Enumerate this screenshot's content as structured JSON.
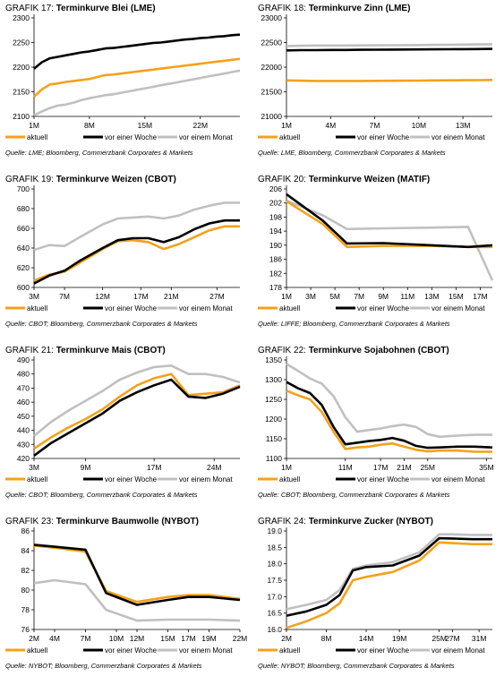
{
  "colors": {
    "aktuell": "#f4a11c",
    "woche": "#000000",
    "monat": "#c0c0c0"
  },
  "legend": [
    "aktuell",
    "vor einer Woche",
    "vor einem Monat"
  ],
  "chart_data": [
    {
      "type": "line",
      "grafik": "GRAFIK 17:",
      "title": "Terminkurve Blei (LME)",
      "source": "Quelle: LME; Bloomberg, Commerzbank Corporates & Markets",
      "ylim": [
        2100,
        2300
      ],
      "yticks": [
        2100,
        2150,
        2200,
        2250,
        2300
      ],
      "xlim": [
        1,
        27
      ],
      "xticks": [
        {
          "x": 1,
          "label": "1M"
        },
        {
          "x": 8,
          "label": "8M"
        },
        {
          "x": 15,
          "label": "15M"
        },
        {
          "x": 22,
          "label": "22M"
        }
      ],
      "x": [
        1,
        2,
        3,
        4,
        5,
        6,
        7,
        8,
        9,
        10,
        11,
        12,
        13,
        14,
        15,
        16,
        17,
        18,
        19,
        20,
        21,
        22,
        23,
        24,
        25,
        26,
        27
      ],
      "series": [
        {
          "name": "aktuell",
          "values": [
            2140,
            2155,
            2165,
            2167,
            2170,
            2172,
            2174,
            2176,
            2180,
            2184,
            2185,
            2187,
            2189,
            2191,
            2193,
            2195,
            2197,
            2199,
            2201,
            2203,
            2205,
            2207,
            2209,
            2211,
            2213,
            2215,
            2217
          ]
        },
        {
          "name": "vor einer Woche",
          "values": [
            2197,
            2210,
            2218,
            2221,
            2224,
            2227,
            2230,
            2232,
            2235,
            2238,
            2239,
            2241,
            2243,
            2245,
            2247,
            2249,
            2250,
            2252,
            2254,
            2256,
            2257,
            2259,
            2260,
            2262,
            2263,
            2265,
            2266
          ]
        },
        {
          "name": "vor einem Monat",
          "values": [
            2102,
            2110,
            2117,
            2122,
            2124,
            2128,
            2133,
            2137,
            2140,
            2143,
            2145,
            2148,
            2151,
            2154,
            2157,
            2160,
            2163,
            2166,
            2169,
            2172,
            2175,
            2178,
            2181,
            2184,
            2187,
            2190,
            2193
          ]
        }
      ]
    },
    {
      "type": "line",
      "grafik": "GRAFIK 18:",
      "title": "Terminkurve Zinn (LME)",
      "source": "Quelle: LME, Bloomberg, Commerzbank Corporates & Markets",
      "ylim": [
        21000,
        23000
      ],
      "yticks": [
        21000,
        21500,
        22000,
        22500,
        23000
      ],
      "xlim": [
        1,
        15
      ],
      "xticks": [
        {
          "x": 1,
          "label": "1M"
        },
        {
          "x": 4,
          "label": "4M"
        },
        {
          "x": 7,
          "label": "7M"
        },
        {
          "x": 10,
          "label": "10M"
        },
        {
          "x": 13,
          "label": "13M"
        }
      ],
      "x": [
        1,
        2,
        3,
        4,
        5,
        6,
        7,
        8,
        9,
        10,
        11,
        12,
        13,
        14,
        15
      ],
      "series": [
        {
          "name": "aktuell",
          "values": [
            21730,
            21725,
            21720,
            21720,
            21720,
            21720,
            21722,
            21724,
            21726,
            21728,
            21730,
            21732,
            21734,
            21737,
            21740
          ]
        },
        {
          "name": "vor einer Woche",
          "values": [
            22340,
            22345,
            22345,
            22350,
            22350,
            22352,
            22354,
            22356,
            22358,
            22360,
            22362,
            22364,
            22366,
            22368,
            22370
          ]
        },
        {
          "name": "vor einem Monat",
          "values": [
            22430,
            22435,
            22440,
            22440,
            22440,
            22442,
            22444,
            22446,
            22448,
            22450,
            22452,
            22455,
            22458,
            22461,
            22465
          ]
        }
      ]
    },
    {
      "type": "line",
      "grafik": "GRAFIK 19:",
      "title": "Terminkurve Weizen (CBOT)",
      "source": "Quelle: CBOT; Bloomberg, Commerzbank Corporates & Markets",
      "ylim": [
        600,
        700
      ],
      "yticks": [
        600,
        620,
        640,
        660,
        680,
        700
      ],
      "xlim": [
        3,
        30
      ],
      "xticks": [
        {
          "x": 3,
          "label": "3M"
        },
        {
          "x": 7,
          "label": "7M"
        },
        {
          "x": 12,
          "label": "12M"
        },
        {
          "x": 17,
          "label": "17M"
        },
        {
          "x": 21,
          "label": "21M"
        },
        {
          "x": 27,
          "label": "27M"
        }
      ],
      "x": [
        3,
        5,
        7,
        9,
        12,
        14,
        16,
        18,
        20,
        22,
        24,
        26,
        28,
        30
      ],
      "series": [
        {
          "name": "aktuell",
          "values": [
            607,
            613,
            616,
            625,
            639,
            647,
            648,
            646,
            639,
            644,
            651,
            658,
            662,
            662
          ]
        },
        {
          "name": "vor einer Woche",
          "values": [
            604,
            612,
            617,
            627,
            640,
            648,
            650,
            650,
            646,
            651,
            659,
            665,
            668,
            668
          ]
        },
        {
          "name": "vor einem Monat",
          "values": [
            638,
            643,
            642,
            651,
            664,
            670,
            671,
            672,
            670,
            673,
            679,
            683,
            686,
            686
          ]
        }
      ]
    },
    {
      "type": "line",
      "grafik": "GRAFIK 20:",
      "title": "Terminkurve Weizen (MATIF)",
      "source": "Quelle: LIFFE; Bloomberg, Commerzbank Corporates & Markets",
      "ylim": [
        178,
        206
      ],
      "yticks": [
        178,
        182,
        186,
        190,
        194,
        198,
        202,
        206
      ],
      "xlim": [
        1,
        18
      ],
      "xticks": [
        {
          "x": 1,
          "label": "1M"
        },
        {
          "x": 3,
          "label": "3M"
        },
        {
          "x": 5,
          "label": "5M"
        },
        {
          "x": 7,
          "label": "7M"
        },
        {
          "x": 9,
          "label": "9M"
        },
        {
          "x": 11,
          "label": "11M"
        },
        {
          "x": 13,
          "label": "13M"
        },
        {
          "x": 15,
          "label": "15M"
        },
        {
          "x": 17,
          "label": "17M"
        }
      ],
      "x": [
        1,
        4,
        6,
        9,
        13,
        16,
        18
      ],
      "series": [
        {
          "name": "aktuell",
          "values": [
            202.5,
            196,
            189.5,
            189.8,
            189.8,
            189.5,
            189.5
          ]
        },
        {
          "name": "vor einer Woche",
          "values": [
            204.5,
            197,
            190.5,
            190.6,
            190,
            189.5,
            190
          ]
        },
        {
          "name": "vor einem Monat",
          "values": [
            202.7,
            198.5,
            194.6,
            194.8,
            195,
            195.2,
            180
          ]
        }
      ]
    },
    {
      "type": "line",
      "grafik": "GRAFIK 21:",
      "title": "Terminkurve Mais (CBOT)",
      "source": "Quelle: CBOT; Bloomberg, Commerzbank Corporates & Markets",
      "ylim": [
        420,
        490
      ],
      "yticks": [
        420,
        430,
        440,
        450,
        460,
        470,
        480,
        490
      ],
      "xlim": [
        3,
        27
      ],
      "xticks": [
        {
          "x": 3,
          "label": "3M"
        },
        {
          "x": 9,
          "label": "9M"
        },
        {
          "x": 17,
          "label": "17M"
        },
        {
          "x": 24,
          "label": "24M"
        }
      ],
      "x": [
        3,
        5,
        7,
        9,
        11,
        13,
        15,
        17,
        19,
        21,
        23,
        25,
        27
      ],
      "series": [
        {
          "name": "aktuell",
          "values": [
            427,
            435,
            442,
            448,
            455,
            464,
            472,
            477,
            480,
            465,
            466,
            467,
            472
          ]
        },
        {
          "name": "vor einer Woche",
          "values": [
            422,
            431,
            438,
            445,
            452,
            461,
            467,
            472,
            476,
            464,
            463,
            466,
            471
          ]
        },
        {
          "name": "vor einem Monat",
          "values": [
            436,
            446,
            454,
            461,
            468,
            476,
            481,
            485,
            486,
            480,
            480,
            478,
            474
          ]
        }
      ]
    },
    {
      "type": "line",
      "grafik": "GRAFIK 22:",
      "title": "Terminkurve Sojabohnen (CBOT)",
      "source": "Quelle: CBOT; Bloomberg, Commerzbank Corporates & Markets",
      "ylim": [
        1100,
        1350
      ],
      "yticks": [
        1100,
        1150,
        1200,
        1250,
        1300,
        1350
      ],
      "xlim": [
        1,
        36
      ],
      "xticks": [
        {
          "x": 1,
          "label": "1M"
        },
        {
          "x": 11,
          "label": "11M"
        },
        {
          "x": 17,
          "label": "17M"
        },
        {
          "x": 21,
          "label": "21M"
        },
        {
          "x": 25,
          "label": "25M"
        },
        {
          "x": 35,
          "label": "35M"
        }
      ],
      "x": [
        1,
        3,
        5,
        7,
        9,
        11,
        13,
        15,
        17,
        19,
        21,
        23,
        25,
        27,
        30,
        33,
        36
      ],
      "series": [
        {
          "name": "aktuell",
          "values": [
            1272,
            1260,
            1250,
            1218,
            1168,
            1124,
            1128,
            1130,
            1135,
            1138,
            1130,
            1122,
            1118,
            1120,
            1120,
            1117,
            1117
          ]
        },
        {
          "name": "vor einer Woche",
          "values": [
            1294,
            1278,
            1266,
            1236,
            1180,
            1136,
            1140,
            1144,
            1147,
            1152,
            1145,
            1132,
            1127,
            1128,
            1130,
            1130,
            1128
          ]
        },
        {
          "name": "vor einem Monat",
          "values": [
            1340,
            1322,
            1303,
            1290,
            1258,
            1205,
            1168,
            1172,
            1176,
            1182,
            1186,
            1180,
            1162,
            1155,
            1158,
            1160,
            1160
          ]
        }
      ]
    },
    {
      "type": "line",
      "grafik": "GRAFIK 23:",
      "title": "Terminkurve Baumwolle (NYBOT)",
      "source": "Quelle: NYBOT; Bloomberg, Commerzbank Corporates & Markets",
      "ylim": [
        76,
        86
      ],
      "yticks": [
        76,
        78,
        80,
        82,
        84,
        86
      ],
      "xlim": [
        2,
        22
      ],
      "xticks": [
        {
          "x": 2,
          "label": "2M"
        },
        {
          "x": 4,
          "label": "4M"
        },
        {
          "x": 7,
          "label": "7M"
        },
        {
          "x": 10,
          "label": "10M"
        },
        {
          "x": 12,
          "label": "12M"
        },
        {
          "x": 15,
          "label": "15M"
        },
        {
          "x": 17,
          "label": "17M"
        },
        {
          "x": 19,
          "label": "19M"
        },
        {
          "x": 22,
          "label": "22M"
        }
      ],
      "x": [
        2,
        4,
        7,
        9,
        12,
        15,
        17,
        19,
        22
      ],
      "series": [
        {
          "name": "aktuell",
          "values": [
            84.5,
            84.3,
            83.9,
            79.9,
            78.8,
            79.3,
            79.5,
            79.5,
            79.1
          ]
        },
        {
          "name": "vor einer Woche",
          "values": [
            84.6,
            84.4,
            84.1,
            79.7,
            78.5,
            79.0,
            79.3,
            79.3,
            79.0
          ]
        },
        {
          "name": "vor einem Monat",
          "values": [
            80.7,
            81.0,
            80.6,
            78.0,
            76.9,
            77.0,
            77.0,
            77.0,
            76.9
          ]
        }
      ]
    },
    {
      "type": "line",
      "grafik": "GRAFIK 24:",
      "title": "Terminkurve Zucker (NYBOT)",
      "source": "Quelle: NYBOT; Bloomberg, Commerzbank Corporates & Markets",
      "ylim": [
        16.0,
        19.0
      ],
      "yticks": [
        16.0,
        16.5,
        17.0,
        17.5,
        18.0,
        18.5,
        19.0
      ],
      "xlim": [
        2,
        33
      ],
      "xticks": [
        {
          "x": 2,
          "label": "2M"
        },
        {
          "x": 8,
          "label": "8M"
        },
        {
          "x": 14,
          "label": "14M"
        },
        {
          "x": 19,
          "label": "19M"
        },
        {
          "x": 25,
          "label": "25M"
        },
        {
          "x": 27,
          "label": "27M"
        },
        {
          "x": 31,
          "label": "31M"
        }
      ],
      "x": [
        2,
        5,
        8,
        10,
        12,
        14,
        18,
        22,
        25,
        27,
        30,
        33
      ],
      "series": [
        {
          "name": "aktuell",
          "values": [
            16.05,
            16.25,
            16.5,
            16.8,
            17.5,
            17.6,
            17.75,
            18.1,
            18.65,
            18.63,
            18.6,
            18.6
          ]
        },
        {
          "name": "vor einer Woche",
          "values": [
            16.42,
            16.55,
            16.75,
            17.05,
            17.8,
            17.9,
            17.95,
            18.25,
            18.78,
            18.77,
            18.75,
            18.75
          ]
        },
        {
          "name": "vor einem Monat",
          "values": [
            16.62,
            16.75,
            16.9,
            17.2,
            17.85,
            17.95,
            18.05,
            18.35,
            18.9,
            18.9,
            18.88,
            18.88
          ]
        }
      ]
    }
  ]
}
